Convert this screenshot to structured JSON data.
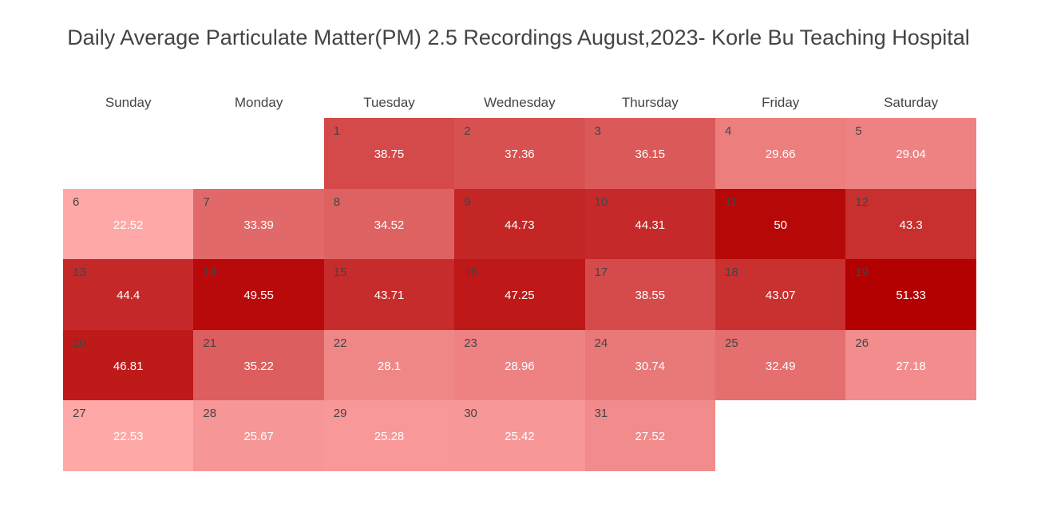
{
  "chart_data": {
    "type": "heatmap",
    "title": "Daily Average Particulate Matter(PM) 2.5 Recordings August,2023- Korle Bu Teaching Hospital",
    "weekdays": [
      "Sunday",
      "Monday",
      "Tuesday",
      "Wednesday",
      "Thursday",
      "Friday",
      "Saturday"
    ],
    "first_weekday_index": 2,
    "days": [
      {
        "day": "1",
        "value": 38.75
      },
      {
        "day": "2",
        "value": 37.36
      },
      {
        "day": "3",
        "value": 36.15
      },
      {
        "day": "4",
        "value": 29.66
      },
      {
        "day": "5",
        "value": 29.04
      },
      {
        "day": "6",
        "value": 22.52
      },
      {
        "day": "7",
        "value": 33.39
      },
      {
        "day": "8",
        "value": 34.52
      },
      {
        "day": "9",
        "value": 44.73
      },
      {
        "day": "10",
        "value": 44.31
      },
      {
        "day": "11",
        "value": 50
      },
      {
        "day": "12",
        "value": 43.3
      },
      {
        "day": "13",
        "value": 44.4
      },
      {
        "day": "14",
        "value": 49.55
      },
      {
        "day": "15",
        "value": 43.71
      },
      {
        "day": "16",
        "value": 47.25
      },
      {
        "day": "17",
        "value": 38.55
      },
      {
        "day": "18",
        "value": 43.07
      },
      {
        "day": "19",
        "value": 51.33
      },
      {
        "day": "20",
        "value": 46.81
      },
      {
        "day": "21",
        "value": 35.22
      },
      {
        "day": "22",
        "value": 28.1
      },
      {
        "day": "23",
        "value": 28.96
      },
      {
        "day": "24",
        "value": 30.74
      },
      {
        "day": "25",
        "value": 32.49
      },
      {
        "day": "26",
        "value": 27.18
      },
      {
        "day": "27",
        "value": 22.53
      },
      {
        "day": "28",
        "value": 25.67
      },
      {
        "day": "29",
        "value": 25.28
      },
      {
        "day": "30",
        "value": 25.42
      },
      {
        "day": "31",
        "value": 27.52
      }
    ],
    "color_scale": {
      "low": "#ffa8a8",
      "high": "#b30000"
    },
    "legend": "none",
    "grid": false
  }
}
